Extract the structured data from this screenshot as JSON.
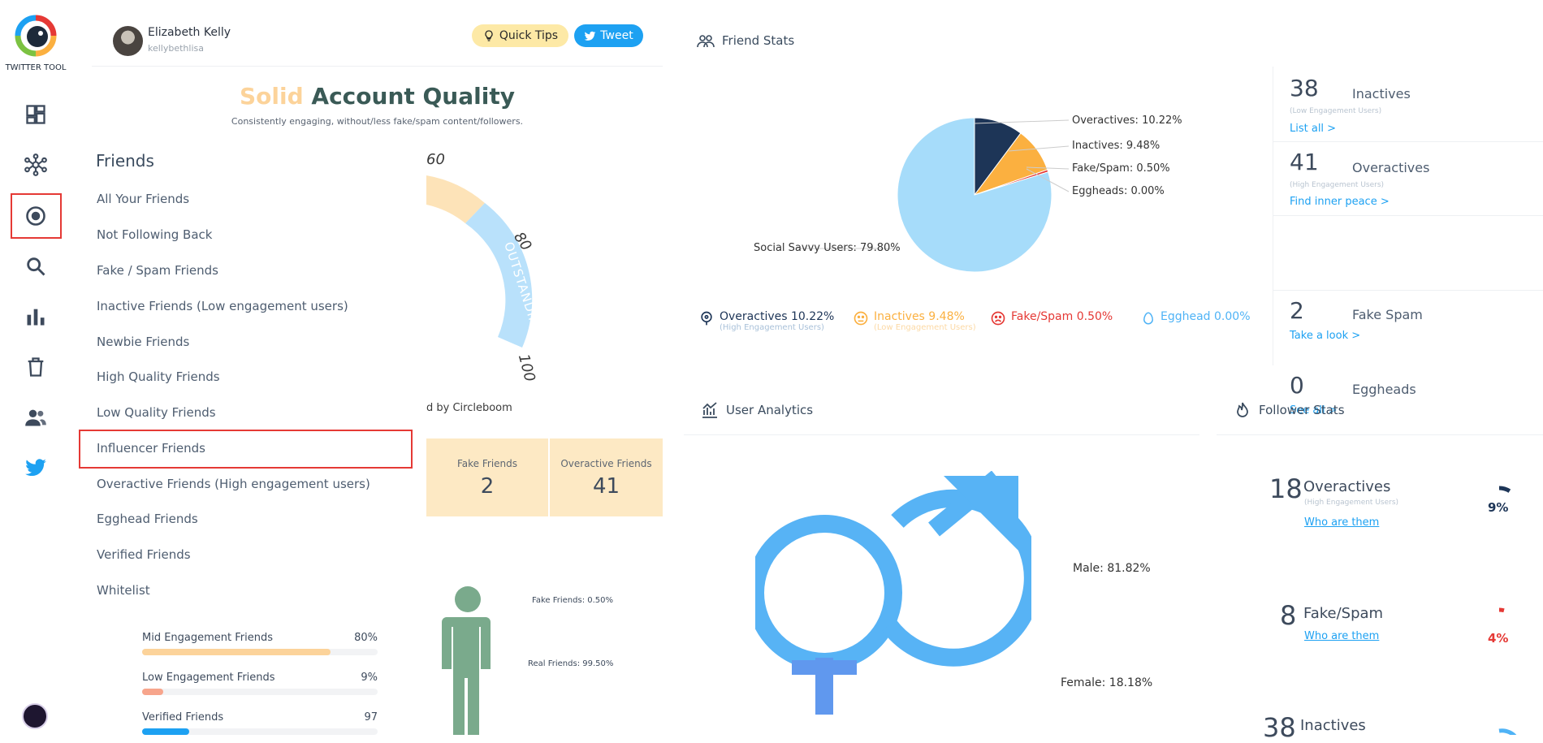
{
  "sidebar": {
    "logo_text": "TWITTER TOOL",
    "items": [
      {
        "icon": "dashboard-icon"
      },
      {
        "icon": "network-icon"
      },
      {
        "icon": "circle-target-icon",
        "selected": true
      },
      {
        "icon": "search-icon"
      },
      {
        "icon": "bar-chart-icon"
      },
      {
        "icon": "trash-icon"
      },
      {
        "icon": "users-icon"
      },
      {
        "icon": "twitter-bird-icon"
      }
    ]
  },
  "profile": {
    "name": "Elizabeth Kelly",
    "handle": "kellybethlisa",
    "quick_tips_label": "Quick Tips",
    "tweet_label": "Tweet"
  },
  "quality": {
    "title_highlight": "Solid",
    "title_rest": "Account Quality",
    "subtitle": "Consistently engaging, without/less fake/spam content/followers."
  },
  "friends_menu": {
    "title": "Friends",
    "items": [
      "All Your Friends",
      "Not Following Back",
      "Fake / Spam Friends",
      "Inactive Friends (Low engagement users)",
      "Newbie Friends",
      "High Quality Friends",
      "Low Quality Friends",
      "Influencer Friends",
      "Overactive Friends (High engagement users)",
      "Egghead Friends",
      "Verified Friends",
      "Whitelist"
    ],
    "selected_index": 7
  },
  "gauge": {
    "ticks": [
      "60",
      "80",
      "100"
    ],
    "band_label": "OUTSTANDING"
  },
  "powered_text": "d by Circleboom",
  "friend_boxes": [
    {
      "label": "Fake Friends",
      "value": "2"
    },
    {
      "label": "Overactive Friends",
      "value": "41"
    }
  ],
  "engagement": [
    {
      "label": "Mid Engagement Friends",
      "value": "80%",
      "fill": 0.8,
      "color": "#fcd39a"
    },
    {
      "label": "Low Engagement Friends",
      "value": "9%",
      "fill": 0.09,
      "color": "#f7a58c"
    },
    {
      "label": "Verified Friends",
      "value": "97",
      "fill": 0.2,
      "color": "#1da1f2"
    }
  ],
  "person_labels": {
    "fake": "Fake Friends: 0.50%",
    "real": "Real Friends: 99.50%"
  },
  "friend_stats": {
    "title": "Friend Stats",
    "pie_labels": {
      "overactives": "Overactives: 10.22%",
      "inactives": "Inactives: 9.48%",
      "fake": "Fake/Spam: 0.50%",
      "eggheads": "Eggheads: 0.00%",
      "social": "Social Savvy Users: 79.80%"
    },
    "legend": [
      {
        "title": "Overactives 10.22%",
        "sub": "(High Engagement Users)",
        "color": "#1d3557",
        "icon": "location-pin-icon"
      },
      {
        "title": "Inactives 9.48%",
        "sub": "(Low Engagement Users)",
        "color": "#fbb040",
        "icon": "sad-face-icon"
      },
      {
        "title": "Fake/Spam 0.50%",
        "sub": "",
        "color": "#e53935",
        "icon": "frown-face-icon"
      },
      {
        "title": "Egghead 0.00%",
        "sub": "",
        "color": "#4fb3f6",
        "icon": "egg-icon"
      }
    ]
  },
  "chart_data": {
    "type": "pie",
    "title": "Friend Stats",
    "categories": [
      "Overactives",
      "Inactives",
      "Fake/Spam",
      "Eggheads",
      "Social Savvy Users"
    ],
    "values": [
      10.22,
      9.48,
      0.5,
      0.0,
      79.8
    ],
    "colors": [
      "#1d3557",
      "#fbb040",
      "#e53935",
      "#cccccc",
      "#a6dcfa"
    ]
  },
  "counters": [
    {
      "num": "38",
      "label": "Inactives",
      "sub": "(Low Engagement Users)",
      "link": "List all >"
    },
    {
      "num": "41",
      "label": "Overactives",
      "sub": "(High Engagement Users)",
      "link": "Find inner peace >"
    },
    {
      "num": "2",
      "label": "Fake Spam",
      "sub": "",
      "link": "Take a look >"
    },
    {
      "num": "0",
      "label": "Eggheads",
      "sub": "",
      "link": "See all >"
    }
  ],
  "user_analytics": {
    "title": "User Analytics",
    "male": "Male: 81.82%",
    "female": "Female: 18.18%"
  },
  "follower_stats": {
    "title": "Follower Stats",
    "items": [
      {
        "num": "18",
        "label": "Overactives",
        "sub": "(High Engagement Users)",
        "link": "Who are them",
        "pct": "9%",
        "pct_color": "#1d3557",
        "ring": 0.09
      },
      {
        "num": "8",
        "label": "Fake/Spam",
        "sub": "",
        "link": "Who are them",
        "pct": "4%",
        "pct_color": "#e53935",
        "ring": 0.04
      },
      {
        "num": "38",
        "label": "Inactives",
        "sub": "",
        "link": "",
        "pct": "",
        "pct_color": "#4fb3f6",
        "ring": 0.2
      }
    ]
  }
}
